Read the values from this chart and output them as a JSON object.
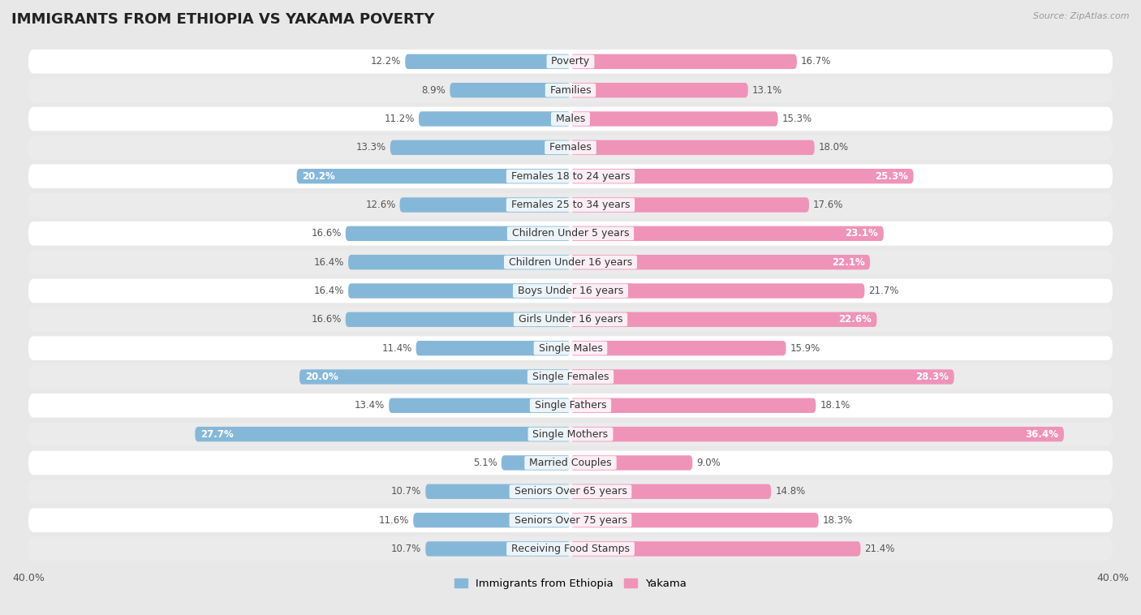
{
  "title": "IMMIGRANTS FROM ETHIOPIA VS YAKAMA POVERTY",
  "source": "Source: ZipAtlas.com",
  "categories": [
    "Poverty",
    "Families",
    "Males",
    "Females",
    "Females 18 to 24 years",
    "Females 25 to 34 years",
    "Children Under 5 years",
    "Children Under 16 years",
    "Boys Under 16 years",
    "Girls Under 16 years",
    "Single Males",
    "Single Females",
    "Single Fathers",
    "Single Mothers",
    "Married Couples",
    "Seniors Over 65 years",
    "Seniors Over 75 years",
    "Receiving Food Stamps"
  ],
  "ethiopia_values": [
    12.2,
    8.9,
    11.2,
    13.3,
    20.2,
    12.6,
    16.6,
    16.4,
    16.4,
    16.6,
    11.4,
    20.0,
    13.4,
    27.7,
    5.1,
    10.7,
    11.6,
    10.7
  ],
  "yakama_values": [
    16.7,
    13.1,
    15.3,
    18.0,
    25.3,
    17.6,
    23.1,
    22.1,
    21.7,
    22.6,
    15.9,
    28.3,
    18.1,
    36.4,
    9.0,
    14.8,
    18.3,
    21.4
  ],
  "ethiopia_color": "#85b8d8",
  "yakama_color": "#f093b8",
  "row_white": "#ffffff",
  "row_gray": "#ebebeb",
  "background_color": "#e8e8e8",
  "xlim": 40.0,
  "legend_ethiopia": "Immigrants from Ethiopia",
  "legend_yakama": "Yakama",
  "title_fontsize": 13,
  "label_fontsize": 9,
  "value_fontsize": 8.5,
  "eth_inside_threshold": 18.0,
  "yak_inside_threshold": 22.0
}
